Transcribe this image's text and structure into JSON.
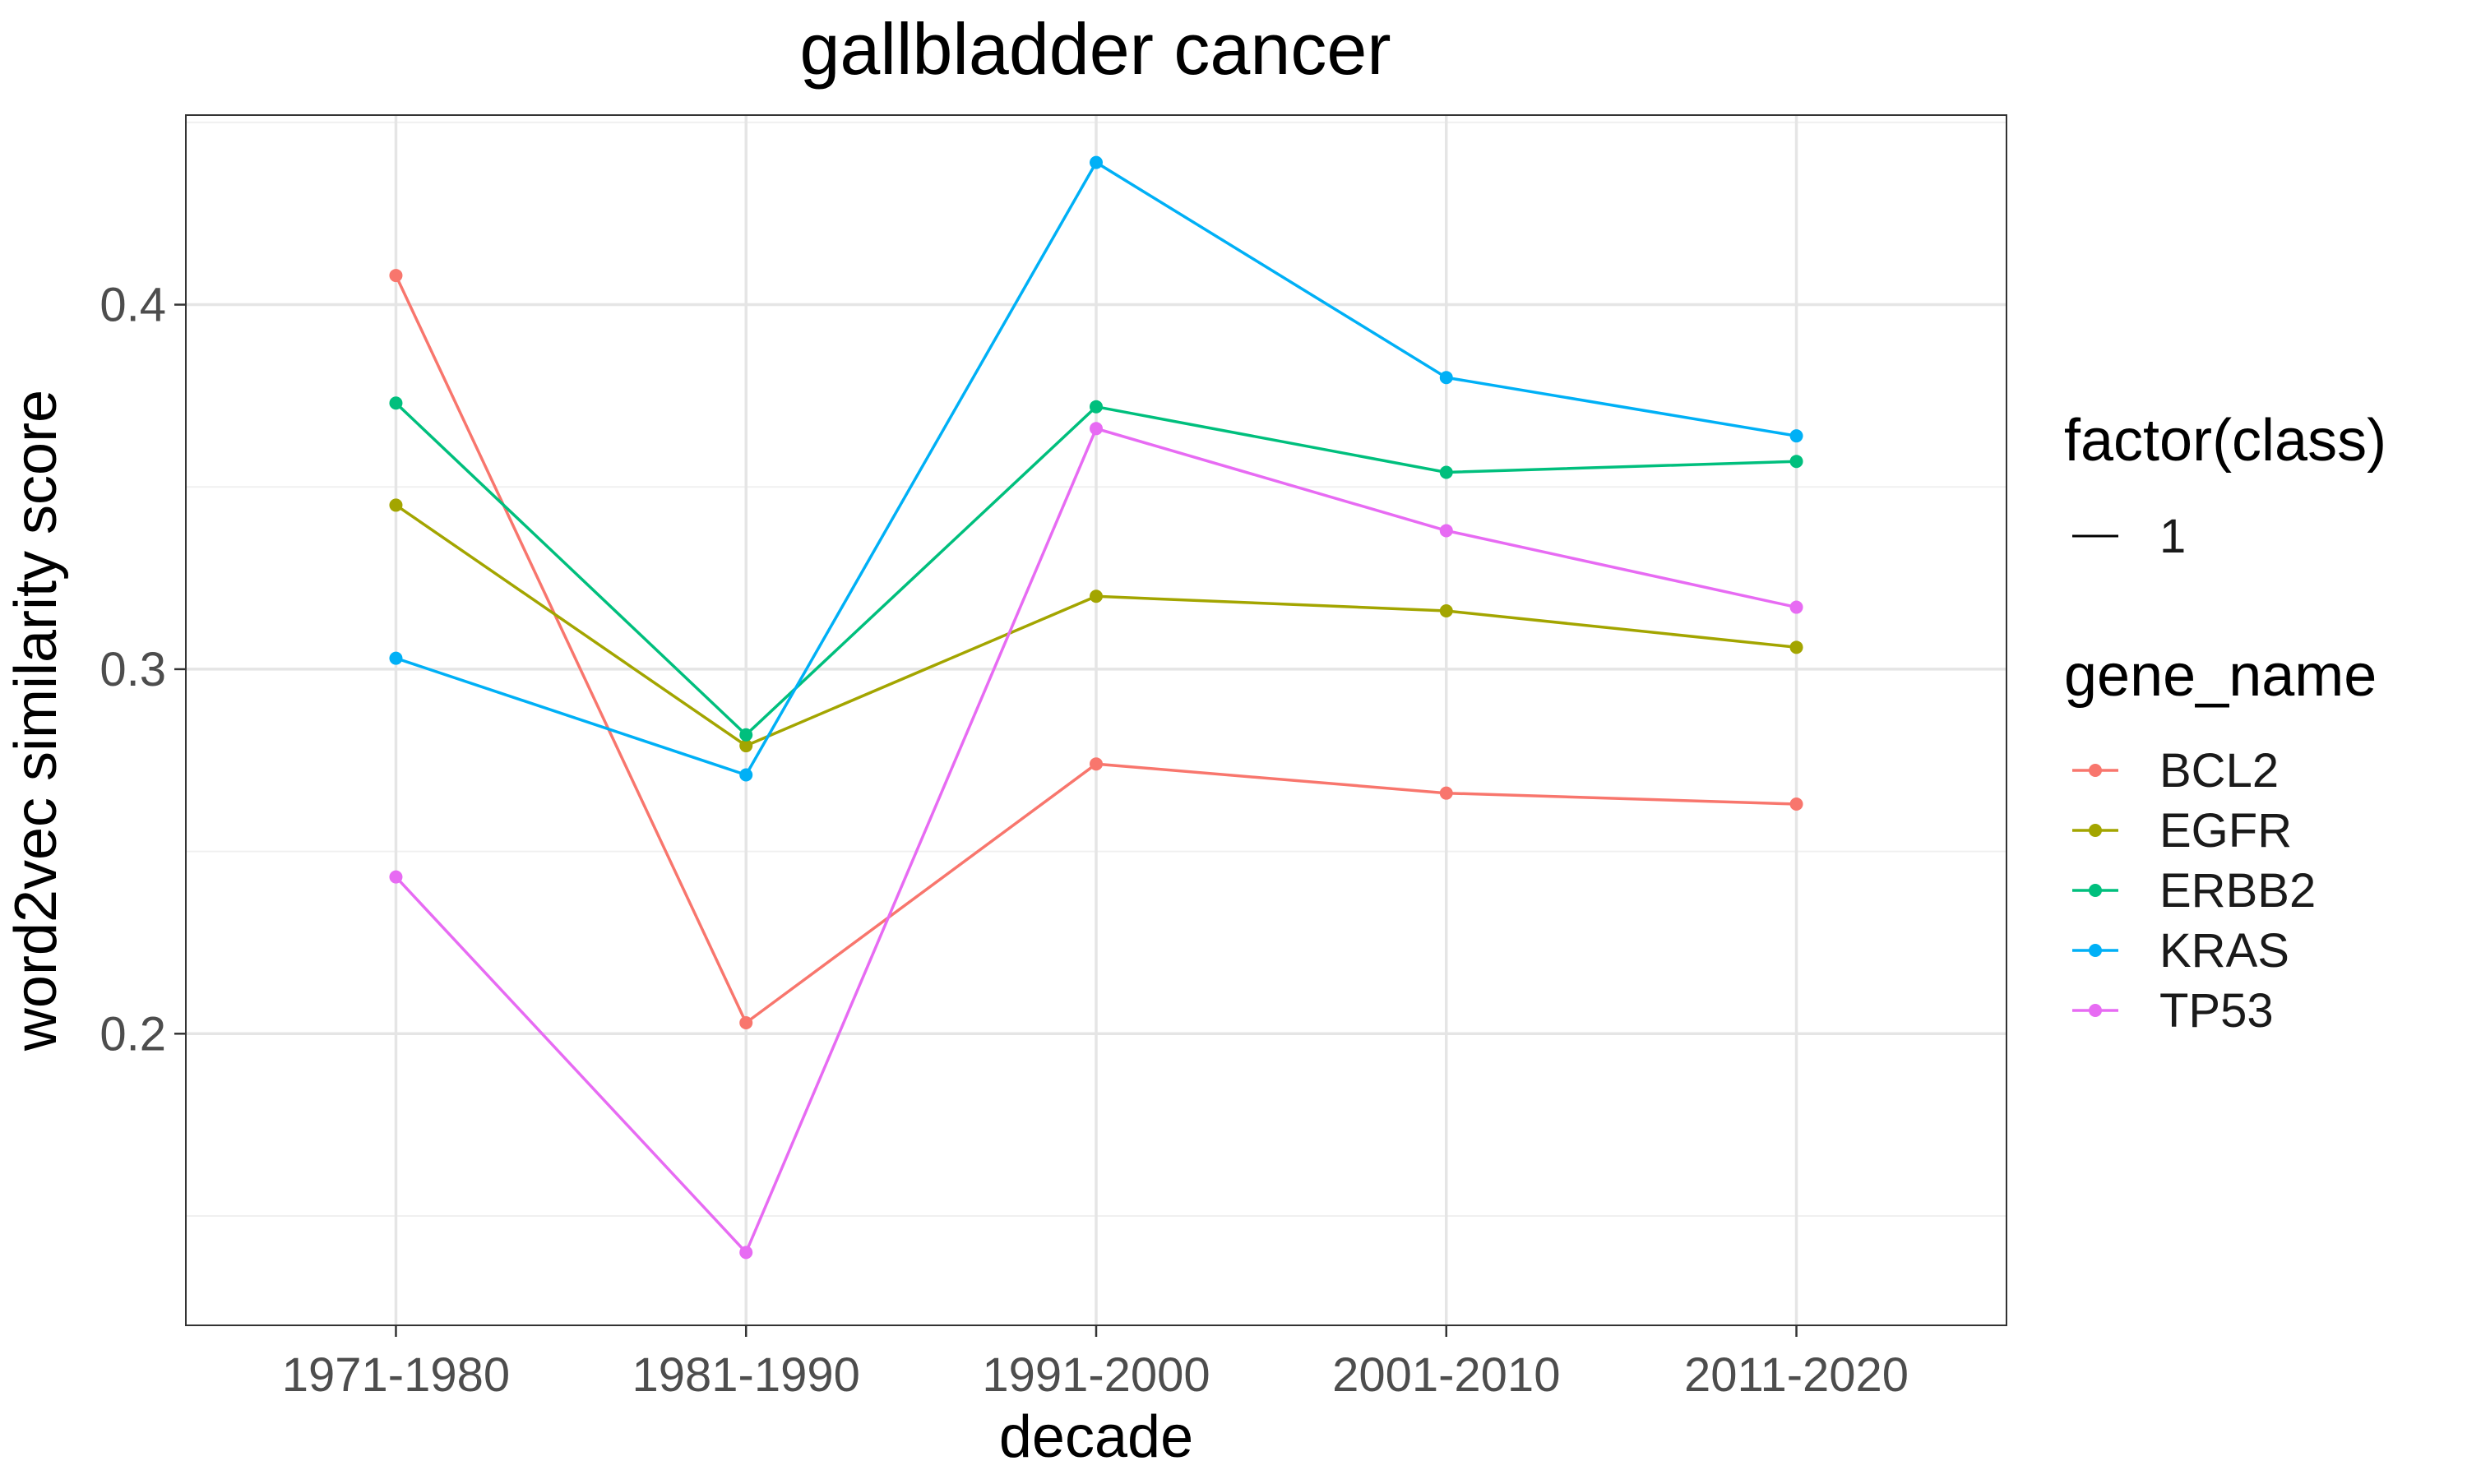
{
  "chart_data": {
    "type": "line",
    "title": "gallbladder cancer",
    "xlabel": "decade",
    "ylabel": "word2vec similarity score",
    "categories": [
      "1971-1980",
      "1981-1990",
      "1991-2000",
      "2001-2010",
      "2011-2020"
    ],
    "ylim": [
      0.12,
      0.452
    ],
    "yticks": [
      0.2,
      0.3,
      0.4
    ],
    "ytick_labels": [
      "0.2",
      "0.3",
      "0.4"
    ],
    "grid": true,
    "legend_position": "right",
    "series": [
      {
        "name": "BCL2",
        "color": "#F8766D",
        "values": [
          0.408,
          0.203,
          0.274,
          0.266,
          0.263
        ]
      },
      {
        "name": "EGFR",
        "color": "#A3A500",
        "values": [
          0.345,
          0.279,
          0.32,
          0.316,
          0.306
        ]
      },
      {
        "name": "ERBB2",
        "color": "#00BF7D",
        "values": [
          0.373,
          0.282,
          0.372,
          0.354,
          0.357
        ]
      },
      {
        "name": "KRAS",
        "color": "#00B0F6",
        "values": [
          0.303,
          0.271,
          0.439,
          0.38,
          0.364
        ]
      },
      {
        "name": "TP53",
        "color": "#E76BF3",
        "values": [
          0.243,
          0.14,
          0.366,
          0.338,
          0.317
        ]
      }
    ],
    "legend": {
      "class_title": "factor(class)",
      "class_entries": [
        "1"
      ],
      "gene_title": "gene_name"
    }
  }
}
